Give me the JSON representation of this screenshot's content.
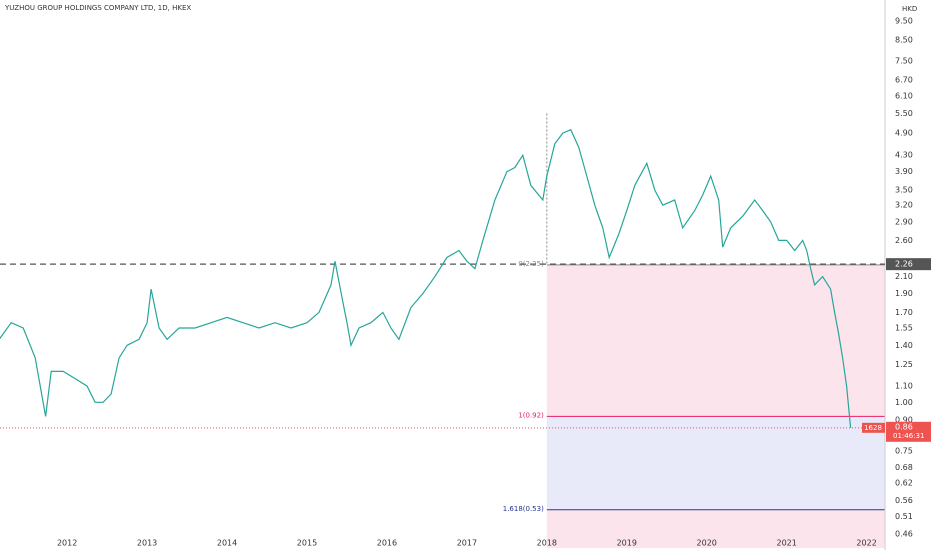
{
  "chart_data": {
    "type": "line",
    "title": "YUZHOU GROUP HOLDINGS COMPANY LTD, 1D, HKEX",
    "currency": "HKD",
    "log_scale": true,
    "x": [
      2011.15,
      2011.3,
      2011.45,
      2011.6,
      2011.73,
      2011.8,
      2011.95,
      2012.1,
      2012.25,
      2012.35,
      2012.45,
      2012.55,
      2012.65,
      2012.75,
      2012.9,
      2013.0,
      2013.05,
      2013.15,
      2013.25,
      2013.4,
      2013.6,
      2013.8,
      2014.0,
      2014.2,
      2014.4,
      2014.6,
      2014.8,
      2015.0,
      2015.15,
      2015.3,
      2015.35,
      2015.45,
      2015.5,
      2015.55,
      2015.65,
      2015.8,
      2015.95,
      2016.05,
      2016.15,
      2016.3,
      2016.45,
      2016.6,
      2016.75,
      2016.9,
      2017.0,
      2017.1,
      2017.2,
      2017.35,
      2017.5,
      2017.6,
      2017.7,
      2017.8,
      2017.95,
      2018.0,
      2018.1,
      2018.2,
      2018.3,
      2018.4,
      2018.5,
      2018.6,
      2018.7,
      2018.78,
      2018.9,
      2019.0,
      2019.1,
      2019.25,
      2019.35,
      2019.45,
      2019.6,
      2019.7,
      2019.85,
      2019.95,
      2020.05,
      2020.15,
      2020.2,
      2020.3,
      2020.45,
      2020.6,
      2020.7,
      2020.8,
      2020.9,
      2021.0,
      2021.1,
      2021.2,
      2021.25,
      2021.3,
      2021.35,
      2021.45,
      2021.55,
      2021.6,
      2021.65,
      2021.7,
      2021.75,
      2021.8
    ],
    "series": [
      {
        "name": "1628",
        "color": "#26a69a",
        "values": [
          1.45,
          1.6,
          1.55,
          1.3,
          0.92,
          1.2,
          1.2,
          1.15,
          1.1,
          1.0,
          1.0,
          1.05,
          1.3,
          1.4,
          1.45,
          1.6,
          1.95,
          1.55,
          1.45,
          1.55,
          1.55,
          1.6,
          1.65,
          1.6,
          1.55,
          1.6,
          1.55,
          1.6,
          1.7,
          2.0,
          2.3,
          1.8,
          1.6,
          1.4,
          1.55,
          1.6,
          1.7,
          1.55,
          1.45,
          1.75,
          1.9,
          2.1,
          2.35,
          2.45,
          2.3,
          2.2,
          2.6,
          3.3,
          3.9,
          4.0,
          4.3,
          3.6,
          3.3,
          3.8,
          4.6,
          4.9,
          5.0,
          4.5,
          3.8,
          3.2,
          2.8,
          2.35,
          2.7,
          3.1,
          3.6,
          4.1,
          3.5,
          3.2,
          3.3,
          2.8,
          3.1,
          3.4,
          3.8,
          3.3,
          2.5,
          2.8,
          3.0,
          3.3,
          3.1,
          2.9,
          2.6,
          2.6,
          2.45,
          2.6,
          2.45,
          2.2,
          2.0,
          2.1,
          1.95,
          1.7,
          1.5,
          1.3,
          1.1,
          0.86
        ]
      }
    ],
    "xlim": [
      2011.16,
      2022.23
    ],
    "xticks": [
      2012,
      2013,
      2014,
      2015,
      2016,
      2017,
      2018,
      2019,
      2020,
      2021,
      2022
    ],
    "ylim": [
      0.423,
      10.75
    ],
    "yticks": [
      {
        "value": 9.5,
        "label": "9.50"
      },
      {
        "value": 8.5,
        "label": "8.50"
      },
      {
        "value": 7.5,
        "label": "7.50"
      },
      {
        "value": 6.7,
        "label": "6.70"
      },
      {
        "value": 6.1,
        "label": "6.10"
      },
      {
        "value": 5.5,
        "label": "5.50"
      },
      {
        "value": 4.9,
        "label": "4.90"
      },
      {
        "value": 4.3,
        "label": "4.30"
      },
      {
        "value": 3.9,
        "label": "3.90"
      },
      {
        "value": 3.5,
        "label": "3.50"
      },
      {
        "value": 3.2,
        "label": "3.20"
      },
      {
        "value": 2.9,
        "label": "2.90"
      },
      {
        "value": 2.6,
        "label": "2.60"
      },
      {
        "value": 2.1,
        "label": "2.10"
      },
      {
        "value": 1.9,
        "label": "1.90"
      },
      {
        "value": 1.7,
        "label": "1.70"
      },
      1.55,
      {
        "value": 1.4,
        "label": "1.40"
      },
      1.25,
      {
        "value": 1.1,
        "label": "1.10"
      },
      {
        "value": 1,
        "label": "1.00"
      },
      {
        "value": 0.9,
        "label": "0.90"
      },
      0.75,
      0.68,
      0.62,
      0.56,
      0.51,
      0.46
    ],
    "reference_price": 2.26,
    "last_price": 0.86,
    "countdown": "01:46:31",
    "fib_start": 2018,
    "fib_levels": [
      {
        "label": "0(2.25)",
        "value": 2.25
      },
      {
        "label": "1(0.92)",
        "value": 0.92
      },
      {
        "label": "1.618(0.53)",
        "value": 0.53
      }
    ]
  }
}
